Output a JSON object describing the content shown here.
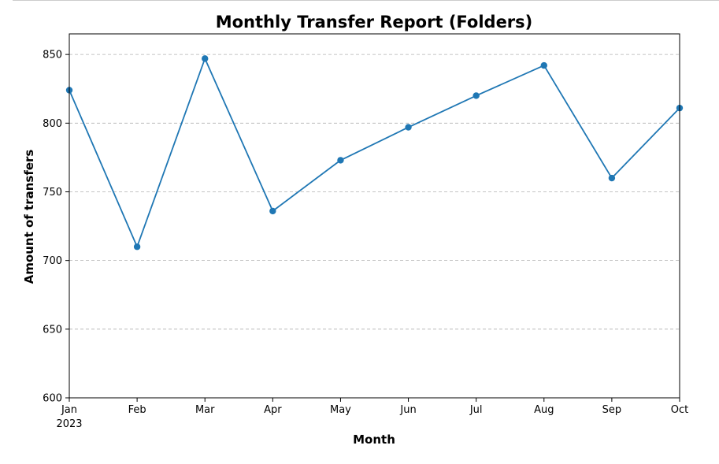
{
  "chart_data": {
    "type": "line",
    "title": "Monthly Transfer Report (Folders)",
    "xlabel": "Month",
    "ylabel": "Amount of transfers",
    "categories": [
      "Jan",
      "Feb",
      "Mar",
      "Apr",
      "May",
      "Jun",
      "Jul",
      "Aug",
      "Sep",
      "Oct"
    ],
    "x_sublabel": "2023",
    "series": [
      {
        "values": [
          824,
          710,
          847,
          736,
          773,
          797,
          820,
          842,
          760,
          811
        ]
      }
    ],
    "ylim": [
      600,
      865
    ],
    "yticks": [
      600,
      650,
      700,
      750,
      800,
      850
    ],
    "grid": "y-dashed",
    "color": "#1f77b4"
  }
}
